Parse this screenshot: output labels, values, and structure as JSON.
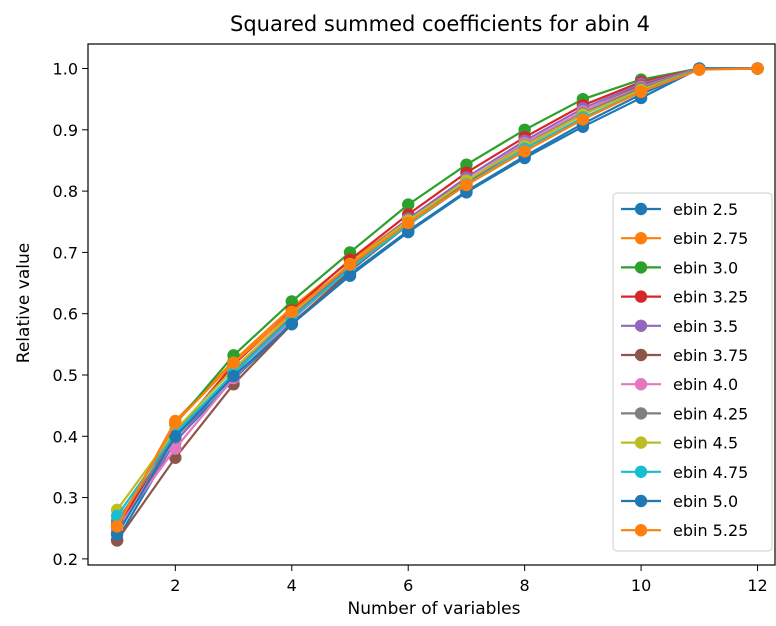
{
  "chart_data": {
    "type": "line",
    "title": "Squared summed coefficients for abin 4",
    "xlabel": "Number of variables",
    "ylabel": "Relative value",
    "xlim": [
      0.5,
      12.3
    ],
    "ylim": [
      0.19,
      1.04
    ],
    "xticks": [
      2,
      4,
      6,
      8,
      10,
      12
    ],
    "yticks": [
      0.2,
      0.3,
      0.4,
      0.5,
      0.6,
      0.7,
      0.8,
      0.9,
      1.0
    ],
    "ytick_labels": [
      "0.2",
      "0.3",
      "0.4",
      "0.5",
      "0.6",
      "0.7",
      "0.8",
      "0.9",
      "1.0"
    ],
    "grid": false,
    "legend_position": "center-right",
    "x": [
      1,
      2,
      3,
      4,
      5,
      6,
      7,
      8,
      9,
      10,
      11,
      12
    ],
    "series": [
      {
        "name": "ebin 2.5",
        "color": "#1f77b4",
        "values": [
          0.231,
          0.392,
          0.493,
          0.585,
          0.665,
          0.735,
          0.8,
          0.857,
          0.91,
          0.958,
          1.0,
          1.0
        ]
      },
      {
        "name": "ebin 2.75",
        "color": "#ff7f0e",
        "values": [
          0.252,
          0.425,
          0.523,
          0.61,
          0.686,
          0.754,
          0.817,
          0.873,
          0.925,
          0.968,
          1.0,
          1.0
        ]
      },
      {
        "name": "ebin 3.0",
        "color": "#2ca02c",
        "values": [
          0.255,
          0.42,
          0.532,
          0.62,
          0.7,
          0.778,
          0.843,
          0.9,
          0.95,
          0.982,
          1.0,
          1.0
        ]
      },
      {
        "name": "ebin 3.25",
        "color": "#d62728",
        "values": [
          0.25,
          0.405,
          0.517,
          0.605,
          0.688,
          0.762,
          0.83,
          0.888,
          0.94,
          0.978,
          1.0,
          1.0
        ]
      },
      {
        "name": "ebin 3.5",
        "color": "#9467bd",
        "values": [
          0.245,
          0.39,
          0.505,
          0.598,
          0.68,
          0.755,
          0.822,
          0.882,
          0.935,
          0.975,
          1.0,
          1.0
        ]
      },
      {
        "name": "ebin 3.75",
        "color": "#8c564b",
        "values": [
          0.23,
          0.365,
          0.485,
          0.583,
          0.67,
          0.745,
          0.813,
          0.875,
          0.93,
          0.972,
          1.0,
          1.0
        ]
      },
      {
        "name": "ebin 4.0",
        "color": "#e377c2",
        "values": [
          0.25,
          0.38,
          0.495,
          0.59,
          0.674,
          0.749,
          0.817,
          0.878,
          0.93,
          0.97,
          1.0,
          1.0
        ]
      },
      {
        "name": "ebin 4.25",
        "color": "#7f7f7f",
        "values": [
          0.262,
          0.398,
          0.502,
          0.594,
          0.676,
          0.75,
          0.816,
          0.875,
          0.927,
          0.968,
          1.0,
          1.0
        ]
      },
      {
        "name": "ebin 4.5",
        "color": "#bcbd22",
        "values": [
          0.28,
          0.41,
          0.51,
          0.6,
          0.681,
          0.752,
          0.817,
          0.874,
          0.925,
          0.965,
          1.0,
          1.0
        ]
      },
      {
        "name": "ebin 4.75",
        "color": "#17becf",
        "values": [
          0.27,
          0.405,
          0.503,
          0.592,
          0.673,
          0.745,
          0.811,
          0.869,
          0.92,
          0.962,
          1.0,
          1.0
        ]
      },
      {
        "name": "ebin 5.0",
        "color": "#1f77b4",
        "values": [
          0.24,
          0.4,
          0.498,
          0.583,
          0.662,
          0.733,
          0.798,
          0.854,
          0.905,
          0.952,
          1.0,
          1.0
        ]
      },
      {
        "name": "ebin 5.25",
        "color": "#ff7f0e",
        "values": [
          0.253,
          0.422,
          0.52,
          0.603,
          0.68,
          0.748,
          0.81,
          0.865,
          0.917,
          0.962,
          0.998,
          1.0
        ]
      }
    ]
  }
}
